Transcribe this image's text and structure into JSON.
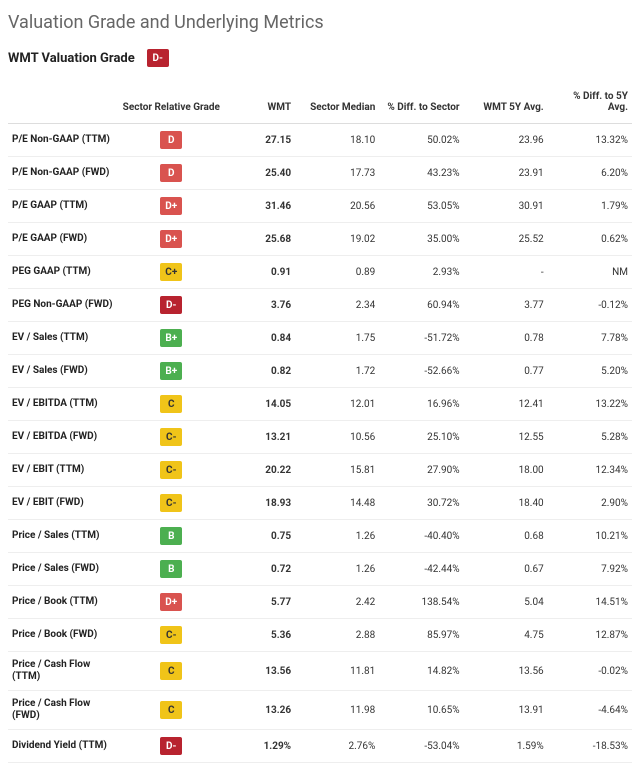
{
  "title": "Valuation Grade and Underlying Metrics",
  "ticker_grade_label": "WMT Valuation Grade",
  "ticker_grade": {
    "letter": "D-",
    "bg": "#b8232f"
  },
  "grade_palette": {
    "D": "#d9534f",
    "D+": "#d9534f",
    "D-": "#b8232f",
    "C": "#f0c419",
    "C+": "#f0c419",
    "C-": "#f0c419",
    "B": "#4caf50",
    "B+": "#4caf50"
  },
  "grade_text_color": {
    "D": "#ffffff",
    "D+": "#ffffff",
    "D-": "#ffffff",
    "C": "#333333",
    "C+": "#333333",
    "C-": "#333333",
    "B": "#ffffff",
    "B+": "#ffffff"
  },
  "columns": [
    "",
    "Sector Relative Grade",
    "WMT",
    "Sector Median",
    "% Diff. to Sector",
    "WMT 5Y Avg.",
    "% Diff. to 5Y Avg."
  ],
  "rows": [
    {
      "metric": "P/E Non-GAAP (TTM)",
      "grade": "D",
      "wmt": "27.15",
      "median": "18.10",
      "diff_sector": "50.02%",
      "avg5y": "23.96",
      "diff_5y": "13.32%"
    },
    {
      "metric": "P/E Non-GAAP (FWD)",
      "grade": "D",
      "wmt": "25.40",
      "median": "17.73",
      "diff_sector": "43.23%",
      "avg5y": "23.91",
      "diff_5y": "6.20%"
    },
    {
      "metric": "P/E GAAP (TTM)",
      "grade": "D+",
      "wmt": "31.46",
      "median": "20.56",
      "diff_sector": "53.05%",
      "avg5y": "30.91",
      "diff_5y": "1.79%"
    },
    {
      "metric": "P/E GAAP (FWD)",
      "grade": "D+",
      "wmt": "25.68",
      "median": "19.02",
      "diff_sector": "35.00%",
      "avg5y": "25.52",
      "diff_5y": "0.62%"
    },
    {
      "metric": "PEG GAAP (TTM)",
      "grade": "C+",
      "wmt": "0.91",
      "median": "0.89",
      "diff_sector": "2.93%",
      "avg5y": "-",
      "diff_5y": "NM"
    },
    {
      "metric": "PEG Non-GAAP (FWD)",
      "grade": "D-",
      "wmt": "3.76",
      "median": "2.34",
      "diff_sector": "60.94%",
      "avg5y": "3.77",
      "diff_5y": "-0.12%"
    },
    {
      "metric": "EV / Sales (TTM)",
      "grade": "B+",
      "wmt": "0.84",
      "median": "1.75",
      "diff_sector": "-51.72%",
      "avg5y": "0.78",
      "diff_5y": "7.78%"
    },
    {
      "metric": "EV / Sales (FWD)",
      "grade": "B+",
      "wmt": "0.82",
      "median": "1.72",
      "diff_sector": "-52.66%",
      "avg5y": "0.77",
      "diff_5y": "5.20%"
    },
    {
      "metric": "EV / EBITDA (TTM)",
      "grade": "C",
      "wmt": "14.05",
      "median": "12.01",
      "diff_sector": "16.96%",
      "avg5y": "12.41",
      "diff_5y": "13.22%"
    },
    {
      "metric": "EV / EBITDA (FWD)",
      "grade": "C-",
      "wmt": "13.21",
      "median": "10.56",
      "diff_sector": "25.10%",
      "avg5y": "12.55",
      "diff_5y": "5.28%"
    },
    {
      "metric": "EV / EBIT (TTM)",
      "grade": "C-",
      "wmt": "20.22",
      "median": "15.81",
      "diff_sector": "27.90%",
      "avg5y": "18.00",
      "diff_5y": "12.34%"
    },
    {
      "metric": "EV / EBIT (FWD)",
      "grade": "C-",
      "wmt": "18.93",
      "median": "14.48",
      "diff_sector": "30.72%",
      "avg5y": "18.40",
      "diff_5y": "2.90%"
    },
    {
      "metric": "Price / Sales (TTM)",
      "grade": "B",
      "wmt": "0.75",
      "median": "1.26",
      "diff_sector": "-40.40%",
      "avg5y": "0.68",
      "diff_5y": "10.21%"
    },
    {
      "metric": "Price / Sales (FWD)",
      "grade": "B",
      "wmt": "0.72",
      "median": "1.26",
      "diff_sector": "-42.44%",
      "avg5y": "0.67",
      "diff_5y": "7.92%"
    },
    {
      "metric": "Price / Book (TTM)",
      "grade": "D+",
      "wmt": "5.77",
      "median": "2.42",
      "diff_sector": "138.54%",
      "avg5y": "5.04",
      "diff_5y": "14.51%"
    },
    {
      "metric": "Price / Book (FWD)",
      "grade": "C-",
      "wmt": "5.36",
      "median": "2.88",
      "diff_sector": "85.97%",
      "avg5y": "4.75",
      "diff_5y": "12.87%"
    },
    {
      "metric": "Price / Cash Flow (TTM)",
      "grade": "C",
      "wmt": "13.56",
      "median": "11.81",
      "diff_sector": "14.82%",
      "avg5y": "13.56",
      "diff_5y": "-0.02%"
    },
    {
      "metric": "Price / Cash Flow (FWD)",
      "grade": "C",
      "wmt": "13.26",
      "median": "11.98",
      "diff_sector": "10.65%",
      "avg5y": "13.91",
      "diff_5y": "-4.64%"
    },
    {
      "metric": "Dividend Yield (TTM)",
      "grade": "D-",
      "wmt": "1.29%",
      "median": "2.76%",
      "diff_sector": "-53.04%",
      "avg5y": "1.59%",
      "diff_5y": "-18.53%"
    }
  ]
}
